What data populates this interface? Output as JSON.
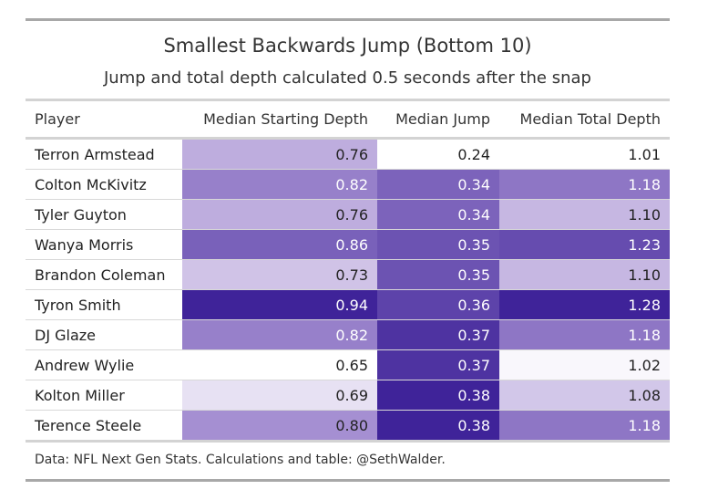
{
  "chart_data": {
    "type": "table",
    "title": "Smallest Backwards Jump (Bottom 10)",
    "subtitle": "Jump and total depth calculated 0.5 seconds after the snap",
    "columns": [
      "Player",
      "Median Starting Depth",
      "Median Jump",
      "Median Total Depth"
    ],
    "rows": [
      {
        "player": "Terron Armstead",
        "start": "0.76",
        "jump": "0.24",
        "total": "1.01"
      },
      {
        "player": "Colton McKivitz",
        "start": "0.82",
        "jump": "0.34",
        "total": "1.18"
      },
      {
        "player": "Tyler Guyton",
        "start": "0.76",
        "jump": "0.34",
        "total": "1.10"
      },
      {
        "player": "Wanya Morris",
        "start": "0.86",
        "jump": "0.35",
        "total": "1.23"
      },
      {
        "player": "Brandon Coleman",
        "start": "0.73",
        "jump": "0.35",
        "total": "1.10"
      },
      {
        "player": "Tyron Smith",
        "start": "0.94",
        "jump": "0.36",
        "total": "1.28"
      },
      {
        "player": "DJ Glaze",
        "start": "0.82",
        "jump": "0.37",
        "total": "1.18"
      },
      {
        "player": "Andrew Wylie",
        "start": "0.65",
        "jump": "0.37",
        "total": "1.02"
      },
      {
        "player": "Kolton Miller",
        "start": "0.69",
        "jump": "0.38",
        "total": "1.08"
      },
      {
        "player": "Terence Steele",
        "start": "0.80",
        "jump": "0.38",
        "total": "1.18"
      }
    ],
    "source": "Data: NFL Next Gen Stats. Calculations and table: @SethWalder.",
    "color_scale": {
      "low": "#ffffff",
      "high": "#3f2399",
      "mid": "#a993d4"
    }
  }
}
